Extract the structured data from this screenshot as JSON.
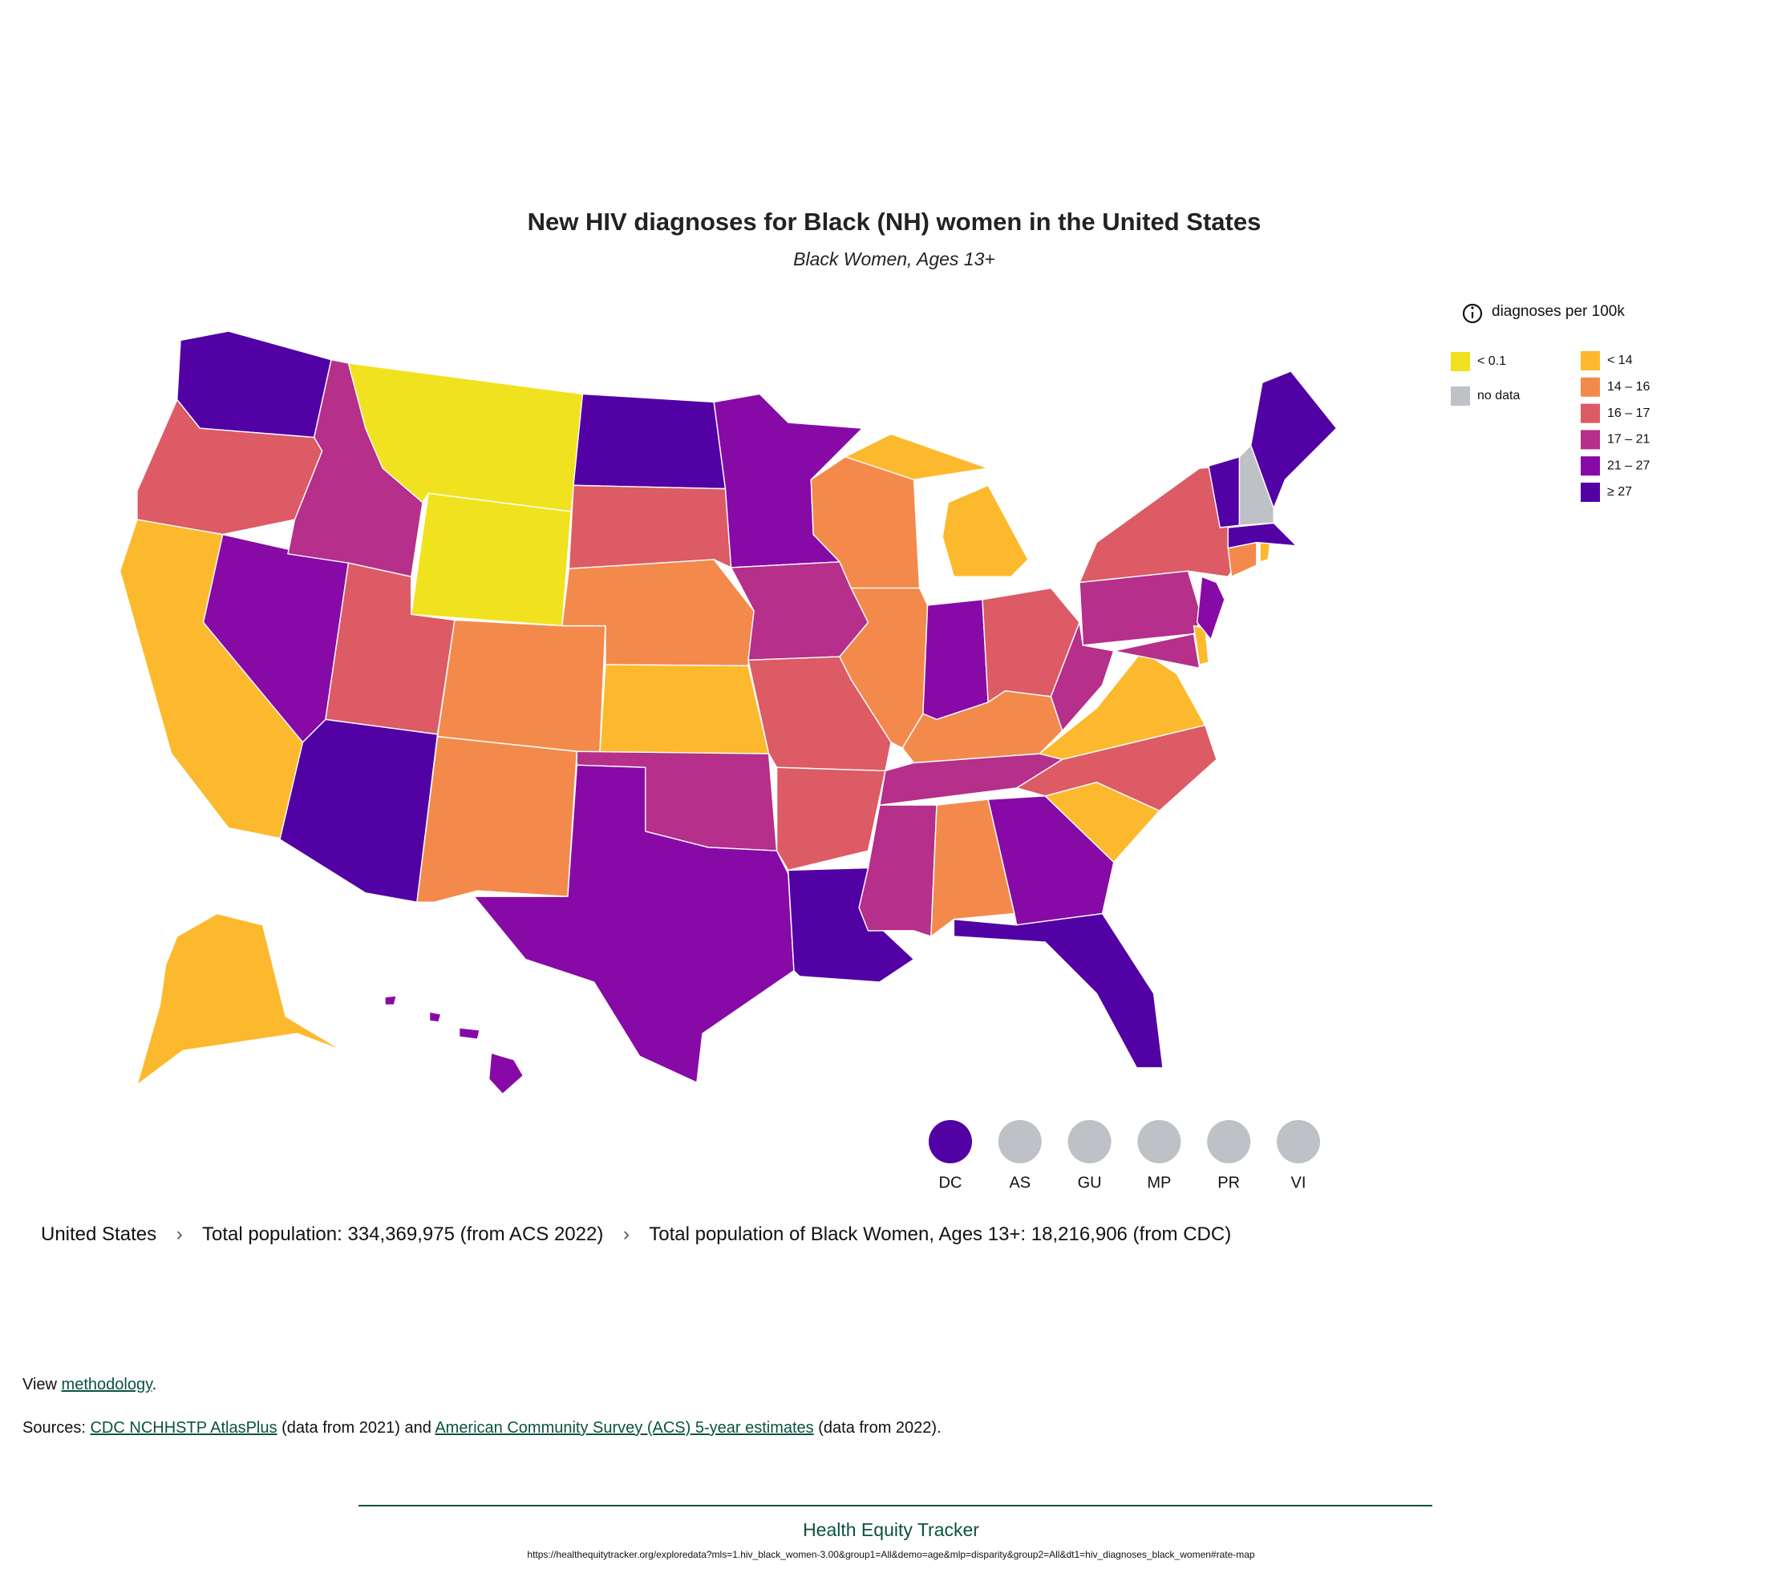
{
  "title": "New HIV diagnoses for Black (NH) women in the United States",
  "subtitle": "Black Women, Ages 13+",
  "legend": {
    "title": "diagnoses per 100k",
    "items": [
      {
        "label": "< 0.1",
        "color": "#f1e21f"
      },
      {
        "label": "no data",
        "color": "#bec1c5"
      },
      {
        "label": "< 14",
        "color": "#fdb92d"
      },
      {
        "label": "14 – 16",
        "color": "#f38a4b"
      },
      {
        "label": "16 – 17",
        "color": "#dc5b65"
      },
      {
        "label": "17 – 21",
        "color": "#b52f8b"
      },
      {
        "label": "21 – 27",
        "color": "#870aa6"
      },
      {
        "label": "≥ 27",
        "color": "#5201a4"
      }
    ]
  },
  "territories": [
    "DC",
    "AS",
    "GU",
    "MP",
    "PR",
    "VI"
  ],
  "breadcrumb": {
    "items": [
      "United States",
      "Total population: 334,369,975 (from ACS 2022)",
      "Total population of Black Women, Ages 13+: 18,216,906 (from CDC)"
    ],
    "separator": "›"
  },
  "methodology": {
    "prefix": "View ",
    "link": "methodology",
    "suffix": "."
  },
  "sources": {
    "prefix": "Sources: ",
    "link1": "CDC NCHHSTP AtlasPlus",
    "middle": " (data from 2021) and ",
    "link2": "American Community Survey (ACS) 5-year estimates",
    "suffix": " (data from 2022)."
  },
  "footer": {
    "brand": "Health Equity Tracker",
    "url": "https://healthequitytracker.org/exploredata?mls=1.hiv_black_women-3.00&group1=All&demo=age&mlp=disparity&group2=All&dt1=hiv_diagnoses_black_women#rate-map"
  }
}
